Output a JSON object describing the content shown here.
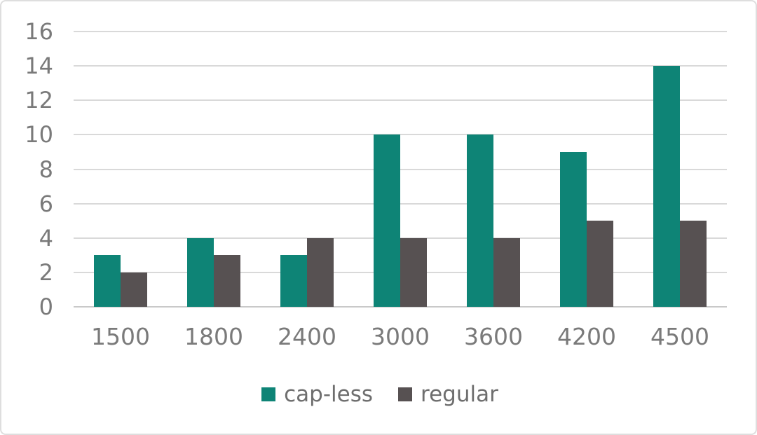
{
  "chart_data": {
    "type": "bar",
    "title": "",
    "xlabel": "",
    "ylabel": "",
    "categories": [
      "1500",
      "1800",
      "2400",
      "3000",
      "3600",
      "4200",
      "4500"
    ],
    "series": [
      {
        "name": "cap-less",
        "color": "#0e8476",
        "values": [
          3,
          4,
          3,
          10,
          10,
          9,
          14
        ]
      },
      {
        "name": "regular",
        "color": "#575152",
        "values": [
          2,
          3,
          4,
          4,
          4,
          5,
          5
        ]
      }
    ],
    "ylim": [
      0,
      16
    ],
    "yticks": [
      0,
      2,
      4,
      6,
      8,
      10,
      12,
      14,
      16
    ],
    "grid": true,
    "legend_position": "bottom"
  },
  "colors": {
    "gridline": "#d9d9d9",
    "axis_line": "#c9c9c9",
    "tick_label": "#7a7a7a",
    "legend_label": "#6e6e6e",
    "background": "#ffffff",
    "frame_border": "#dedede"
  }
}
